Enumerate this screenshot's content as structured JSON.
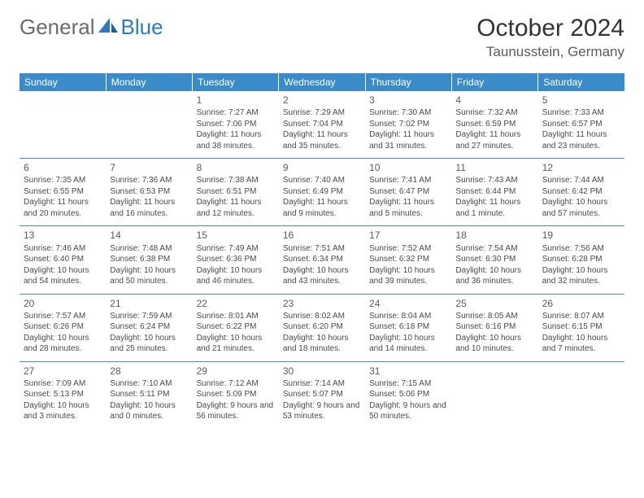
{
  "brand": {
    "part1": "General",
    "part2": "Blue"
  },
  "title": "October 2024",
  "location": "Taunusstein, Germany",
  "colors": {
    "header_bg": "#3b8bc9",
    "header_text": "#ffffff",
    "row_border": "#4a8bc2",
    "brand_gray": "#6b6b6b",
    "brand_blue": "#2b7bbf",
    "body_text": "#4a4a4a"
  },
  "day_headers": [
    "Sunday",
    "Monday",
    "Tuesday",
    "Wednesday",
    "Thursday",
    "Friday",
    "Saturday"
  ],
  "weeks": [
    [
      null,
      null,
      {
        "n": "1",
        "sr": "7:27 AM",
        "ss": "7:06 PM",
        "dl": "11 hours and 38 minutes."
      },
      {
        "n": "2",
        "sr": "7:29 AM",
        "ss": "7:04 PM",
        "dl": "11 hours and 35 minutes."
      },
      {
        "n": "3",
        "sr": "7:30 AM",
        "ss": "7:02 PM",
        "dl": "11 hours and 31 minutes."
      },
      {
        "n": "4",
        "sr": "7:32 AM",
        "ss": "6:59 PM",
        "dl": "11 hours and 27 minutes."
      },
      {
        "n": "5",
        "sr": "7:33 AM",
        "ss": "6:57 PM",
        "dl": "11 hours and 23 minutes."
      }
    ],
    [
      {
        "n": "6",
        "sr": "7:35 AM",
        "ss": "6:55 PM",
        "dl": "11 hours and 20 minutes."
      },
      {
        "n": "7",
        "sr": "7:36 AM",
        "ss": "6:53 PM",
        "dl": "11 hours and 16 minutes."
      },
      {
        "n": "8",
        "sr": "7:38 AM",
        "ss": "6:51 PM",
        "dl": "11 hours and 12 minutes."
      },
      {
        "n": "9",
        "sr": "7:40 AM",
        "ss": "6:49 PM",
        "dl": "11 hours and 9 minutes."
      },
      {
        "n": "10",
        "sr": "7:41 AM",
        "ss": "6:47 PM",
        "dl": "11 hours and 5 minutes."
      },
      {
        "n": "11",
        "sr": "7:43 AM",
        "ss": "6:44 PM",
        "dl": "11 hours and 1 minute."
      },
      {
        "n": "12",
        "sr": "7:44 AM",
        "ss": "6:42 PM",
        "dl": "10 hours and 57 minutes."
      }
    ],
    [
      {
        "n": "13",
        "sr": "7:46 AM",
        "ss": "6:40 PM",
        "dl": "10 hours and 54 minutes."
      },
      {
        "n": "14",
        "sr": "7:48 AM",
        "ss": "6:38 PM",
        "dl": "10 hours and 50 minutes."
      },
      {
        "n": "15",
        "sr": "7:49 AM",
        "ss": "6:36 PM",
        "dl": "10 hours and 46 minutes."
      },
      {
        "n": "16",
        "sr": "7:51 AM",
        "ss": "6:34 PM",
        "dl": "10 hours and 43 minutes."
      },
      {
        "n": "17",
        "sr": "7:52 AM",
        "ss": "6:32 PM",
        "dl": "10 hours and 39 minutes."
      },
      {
        "n": "18",
        "sr": "7:54 AM",
        "ss": "6:30 PM",
        "dl": "10 hours and 36 minutes."
      },
      {
        "n": "19",
        "sr": "7:56 AM",
        "ss": "6:28 PM",
        "dl": "10 hours and 32 minutes."
      }
    ],
    [
      {
        "n": "20",
        "sr": "7:57 AM",
        "ss": "6:26 PM",
        "dl": "10 hours and 28 minutes."
      },
      {
        "n": "21",
        "sr": "7:59 AM",
        "ss": "6:24 PM",
        "dl": "10 hours and 25 minutes."
      },
      {
        "n": "22",
        "sr": "8:01 AM",
        "ss": "6:22 PM",
        "dl": "10 hours and 21 minutes."
      },
      {
        "n": "23",
        "sr": "8:02 AM",
        "ss": "6:20 PM",
        "dl": "10 hours and 18 minutes."
      },
      {
        "n": "24",
        "sr": "8:04 AM",
        "ss": "6:18 PM",
        "dl": "10 hours and 14 minutes."
      },
      {
        "n": "25",
        "sr": "8:05 AM",
        "ss": "6:16 PM",
        "dl": "10 hours and 10 minutes."
      },
      {
        "n": "26",
        "sr": "8:07 AM",
        "ss": "6:15 PM",
        "dl": "10 hours and 7 minutes."
      }
    ],
    [
      {
        "n": "27",
        "sr": "7:09 AM",
        "ss": "5:13 PM",
        "dl": "10 hours and 3 minutes."
      },
      {
        "n": "28",
        "sr": "7:10 AM",
        "ss": "5:11 PM",
        "dl": "10 hours and 0 minutes."
      },
      {
        "n": "29",
        "sr": "7:12 AM",
        "ss": "5:09 PM",
        "dl": "9 hours and 56 minutes."
      },
      {
        "n": "30",
        "sr": "7:14 AM",
        "ss": "5:07 PM",
        "dl": "9 hours and 53 minutes."
      },
      {
        "n": "31",
        "sr": "7:15 AM",
        "ss": "5:06 PM",
        "dl": "9 hours and 50 minutes."
      },
      null,
      null
    ]
  ],
  "labels": {
    "sunrise": "Sunrise: ",
    "sunset": "Sunset: ",
    "daylight": "Daylight: "
  }
}
